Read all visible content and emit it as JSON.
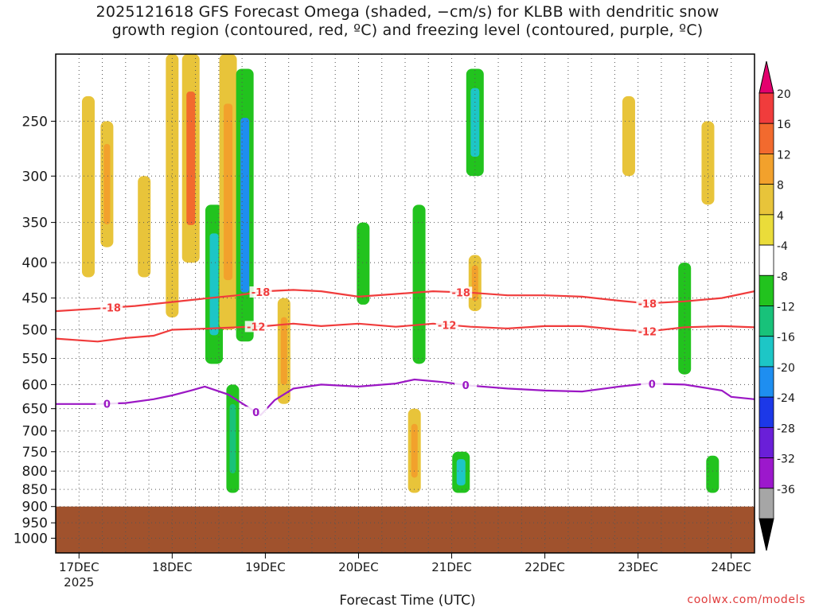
{
  "title_line1": "2025121618 GFS Forecast Omega (shaded, −cm/s) for KLBB with dendritic snow",
  "title_line2": "growth region (contoured, red, ºC) and freezing level (contoured, purple, ºC)",
  "credit": "coolwx.com/models",
  "chart_data": {
    "type": "heatmap",
    "title": "2025121618 GFS Forecast Omega (shaded, −cm/s) for KLBB with dendritic snow growth region (contoured, red, ºC) and freezing level (contoured, purple, ºC)",
    "xlabel": "Forecast Time (UTC)",
    "ylabel": "",
    "x_ticks": [
      "17DEC",
      "18DEC",
      "19DEC",
      "20DEC",
      "21DEC",
      "22DEC",
      "23DEC",
      "24DEC"
    ],
    "x_year_label": "2025",
    "x_range_days": [
      16.75,
      24.25
    ],
    "y_ticks": [
      250,
      300,
      350,
      400,
      450,
      500,
      550,
      600,
      650,
      700,
      750,
      800,
      850,
      900,
      950,
      1000
    ],
    "y_range_hpa": [
      200,
      1050
    ],
    "y_scale": "log-pressure (reversed)",
    "grid": "dotted",
    "colorbar": {
      "labels": [
        "20",
        "16",
        "12",
        "8",
        "4",
        "-4",
        "-8",
        "-12",
        "-16",
        "-20",
        "-24",
        "-28",
        "-32",
        "-36"
      ],
      "colors": [
        "#e3006e",
        "#f03c3c",
        "#f26a2e",
        "#f2a12c",
        "#e8c43a",
        "#eadc3a",
        "#ffffff",
        "#22c31e",
        "#18c27a",
        "#1dc6c6",
        "#1e8ef0",
        "#1c38e8",
        "#6a1fd8",
        "#9c18cc",
        "#a6a6a6",
        "#000000"
      ]
    },
    "ground_color": "#a0522d",
    "ground_level_hpa": 900,
    "contours_red_dgz": [
      {
        "label": "-18",
        "label_positions_day": [
          17.35,
          18.95,
          21.1,
          23.1
        ],
        "color": "#f03c3c",
        "points": [
          [
            16.75,
            470
          ],
          [
            17.2,
            466
          ],
          [
            17.6,
            462
          ],
          [
            18.0,
            456
          ],
          [
            18.4,
            450
          ],
          [
            18.7,
            446
          ],
          [
            19.0,
            440
          ],
          [
            19.3,
            438
          ],
          [
            19.6,
            440
          ],
          [
            20.0,
            448
          ],
          [
            20.4,
            444
          ],
          [
            20.8,
            440
          ],
          [
            21.2,
            442
          ],
          [
            21.6,
            446
          ],
          [
            22.0,
            446
          ],
          [
            22.4,
            448
          ],
          [
            22.8,
            454
          ],
          [
            23.1,
            458
          ],
          [
            23.5,
            455
          ],
          [
            23.9,
            450
          ],
          [
            24.25,
            440
          ]
        ]
      },
      {
        "label": "-12",
        "label_positions_day": [
          18.9,
          20.95,
          23.1
        ],
        "color": "#f03c3c",
        "points": [
          [
            16.75,
            515
          ],
          [
            17.2,
            520
          ],
          [
            17.5,
            514
          ],
          [
            17.8,
            510
          ],
          [
            18.0,
            500
          ],
          [
            18.4,
            498
          ],
          [
            18.7,
            496
          ],
          [
            19.0,
            494
          ],
          [
            19.3,
            490
          ],
          [
            19.6,
            494
          ],
          [
            20.0,
            490
          ],
          [
            20.4,
            495
          ],
          [
            20.8,
            490
          ],
          [
            21.2,
            495
          ],
          [
            21.6,
            498
          ],
          [
            22.0,
            494
          ],
          [
            22.4,
            494
          ],
          [
            22.8,
            500
          ],
          [
            23.1,
            503
          ],
          [
            23.5,
            496
          ],
          [
            23.9,
            494
          ],
          [
            24.25,
            496
          ]
        ]
      }
    ],
    "contours_purple_freezing": [
      {
        "label": "0",
        "label_positions_day": [
          17.3,
          18.9,
          21.15,
          23.15
        ],
        "color": "#9b17c4",
        "points": [
          [
            16.75,
            640
          ],
          [
            17.2,
            640
          ],
          [
            17.5,
            638
          ],
          [
            17.8,
            630
          ],
          [
            18.0,
            622
          ],
          [
            18.2,
            612
          ],
          [
            18.35,
            604
          ],
          [
            18.6,
            620
          ],
          [
            18.8,
            645
          ],
          [
            18.95,
            664
          ],
          [
            19.1,
            632
          ],
          [
            19.3,
            608
          ],
          [
            19.6,
            600
          ],
          [
            20.0,
            604
          ],
          [
            20.4,
            598
          ],
          [
            20.6,
            590
          ],
          [
            20.9,
            595
          ],
          [
            21.2,
            602
          ],
          [
            21.6,
            608
          ],
          [
            22.0,
            612
          ],
          [
            22.4,
            614
          ],
          [
            22.8,
            604
          ],
          [
            23.1,
            598
          ],
          [
            23.5,
            600
          ],
          [
            23.9,
            612
          ],
          [
            24.0,
            625
          ],
          [
            24.25,
            630
          ]
        ]
      }
    ],
    "omega_regions_cms": [
      {
        "day": 17.1,
        "p_top": 230,
        "p_bot": 420,
        "value": 6
      },
      {
        "day": 17.3,
        "p_top": 250,
        "p_bot": 380,
        "value": 8
      },
      {
        "day": 17.7,
        "p_top": 300,
        "p_bot": 420,
        "value": 6
      },
      {
        "day": 18.0,
        "p_top": 200,
        "p_bot": 480,
        "value": 6
      },
      {
        "day": 18.2,
        "p_top": 200,
        "p_bot": 400,
        "value": 12
      },
      {
        "day": 18.45,
        "p_top": 330,
        "p_bot": 560,
        "value": -14
      },
      {
        "day": 18.6,
        "p_top": 200,
        "p_bot": 500,
        "value": 10
      },
      {
        "day": 18.78,
        "p_top": 210,
        "p_bot": 520,
        "value": -16
      },
      {
        "day": 18.65,
        "p_top": 600,
        "p_bot": 860,
        "value": -8
      },
      {
        "day": 19.2,
        "p_top": 450,
        "p_bot": 640,
        "value": 8
      },
      {
        "day": 20.05,
        "p_top": 350,
        "p_bot": 460,
        "value": -6
      },
      {
        "day": 20.6,
        "p_top": 650,
        "p_bot": 860,
        "value": 8
      },
      {
        "day": 20.65,
        "p_top": 330,
        "p_bot": 560,
        "value": -6
      },
      {
        "day": 21.25,
        "p_top": 210,
        "p_bot": 300,
        "value": -12
      },
      {
        "day": 21.25,
        "p_top": 390,
        "p_bot": 470,
        "value": 8
      },
      {
        "day": 21.1,
        "p_top": 750,
        "p_bot": 860,
        "value": -14
      },
      {
        "day": 22.9,
        "p_top": 230,
        "p_bot": 300,
        "value": 5
      },
      {
        "day": 23.5,
        "p_top": 400,
        "p_bot": 580,
        "value": -6
      },
      {
        "day": 23.75,
        "p_top": 250,
        "p_bot": 330,
        "value": 5
      },
      {
        "day": 23.8,
        "p_top": 760,
        "p_bot": 860,
        "value": -6
      }
    ]
  }
}
